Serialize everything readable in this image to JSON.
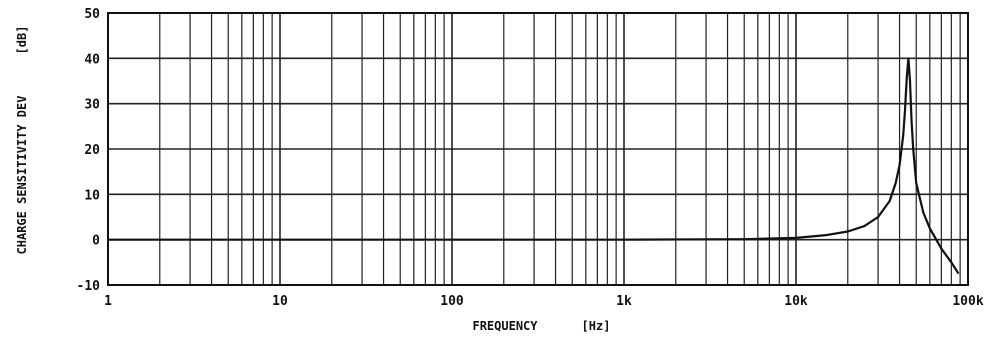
{
  "chart_data": {
    "type": "line",
    "xscale": "log",
    "xlim": [
      1,
      100000
    ],
    "ylim": [
      -10,
      50
    ],
    "xlabel": "FREQUENCY",
    "xunit": "[Hz]",
    "ylabel": "CHARGE SENSITIVITY DEV",
    "yunit": "[dB]",
    "grid": true,
    "x_ticks": [
      {
        "value": 1,
        "label": "1"
      },
      {
        "value": 10,
        "label": "10"
      },
      {
        "value": 100,
        "label": "100"
      },
      {
        "value": 1000,
        "label": "1k"
      },
      {
        "value": 10000,
        "label": "10k"
      },
      {
        "value": 100000,
        "label": "100k"
      }
    ],
    "y_ticks": [
      {
        "value": 50,
        "label": "50"
      },
      {
        "value": 40,
        "label": "40"
      },
      {
        "value": 30,
        "label": "30"
      },
      {
        "value": 20,
        "label": "20"
      },
      {
        "value": 10,
        "label": "10"
      },
      {
        "value": 0,
        "label": "0"
      },
      {
        "value": -10,
        "label": "-10"
      }
    ],
    "series": [
      {
        "color": "#111111",
        "x": [
          1,
          10,
          100,
          1000,
          5000,
          10000,
          15000,
          20000,
          25000,
          30000,
          35000,
          38000,
          40000,
          42000,
          43000,
          44000,
          45000,
          46000,
          47000,
          48000,
          50000,
          55000,
          60000,
          70000,
          80000,
          88000
        ],
        "y": [
          0,
          0,
          0,
          0,
          0.1,
          0.4,
          1.0,
          1.8,
          3.0,
          5.0,
          8.5,
          12.5,
          16.5,
          23.0,
          28.5,
          35.5,
          40.0,
          35.0,
          26.0,
          20.0,
          12.5,
          6.0,
          2.5,
          -2.0,
          -5.0,
          -7.5
        ]
      }
    ]
  }
}
